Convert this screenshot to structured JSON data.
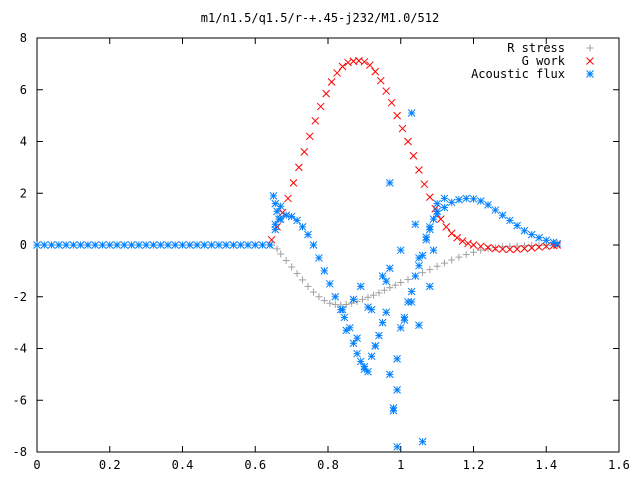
{
  "chart_data": {
    "type": "scatter",
    "title": "m1/n1.5/q1.5/r-+.45-j232/M1.0/512",
    "xlabel": "",
    "ylabel": "",
    "xlim": [
      0,
      1.6
    ],
    "ylim": [
      -8,
      8
    ],
    "xticks": [
      "0",
      "0.2",
      "0.4",
      "0.6",
      "0.8",
      "1",
      "1.2",
      "1.4",
      "1.6"
    ],
    "yticks": [
      "8",
      "6",
      "4",
      "2",
      "0",
      "-2",
      "-4",
      "-6",
      "-8"
    ],
    "grid": false,
    "legend_position": "top-right",
    "series": [
      {
        "name": "R stress",
        "marker": "plus",
        "color": "#a0a0a0",
        "x": [
          0.645,
          0.66,
          0.67,
          0.685,
          0.7,
          0.715,
          0.73,
          0.745,
          0.76,
          0.775,
          0.79,
          0.805,
          0.82,
          0.835,
          0.85,
          0.865,
          0.88,
          0.895,
          0.91,
          0.925,
          0.94,
          0.955,
          0.97,
          0.985,
          1.0,
          1.02,
          1.04,
          1.06,
          1.08,
          1.1,
          1.12,
          1.14,
          1.16,
          1.18,
          1.2,
          1.22,
          1.24,
          1.26,
          1.28,
          1.3,
          1.32,
          1.34,
          1.36,
          1.38,
          1.4,
          1.42,
          1.43
        ],
        "y": [
          0.0,
          -0.15,
          -0.35,
          -0.6,
          -0.85,
          -1.1,
          -1.35,
          -1.6,
          -1.82,
          -2.0,
          -2.15,
          -2.25,
          -2.3,
          -2.32,
          -2.3,
          -2.25,
          -2.18,
          -2.1,
          -2.02,
          -1.94,
          -1.85,
          -1.75,
          -1.65,
          -1.55,
          -1.45,
          -1.33,
          -1.2,
          -1.07,
          -0.95,
          -0.82,
          -0.7,
          -0.58,
          -0.47,
          -0.37,
          -0.28,
          -0.2,
          -0.14,
          -0.1,
          -0.07,
          -0.05,
          -0.04,
          -0.03,
          -0.02,
          -0.02,
          -0.01,
          -0.01,
          0.0
        ]
      },
      {
        "name": "G work",
        "marker": "cross",
        "color": "#ff0000",
        "x": [
          0.645,
          0.66,
          0.675,
          0.69,
          0.705,
          0.72,
          0.735,
          0.75,
          0.765,
          0.78,
          0.795,
          0.81,
          0.825,
          0.84,
          0.855,
          0.87,
          0.885,
          0.9,
          0.915,
          0.93,
          0.945,
          0.96,
          0.975,
          0.99,
          1.005,
          1.02,
          1.035,
          1.05,
          1.065,
          1.08,
          1.095,
          1.11,
          1.125,
          1.14,
          1.155,
          1.17,
          1.185,
          1.2,
          1.22,
          1.24,
          1.26,
          1.28,
          1.3,
          1.32,
          1.34,
          1.36,
          1.38,
          1.4,
          1.42,
          1.43
        ],
        "y": [
          0.2,
          0.7,
          1.25,
          1.8,
          2.4,
          3.0,
          3.6,
          4.2,
          4.8,
          5.35,
          5.85,
          6.3,
          6.65,
          6.9,
          7.05,
          7.1,
          7.12,
          7.08,
          6.95,
          6.7,
          6.35,
          5.95,
          5.5,
          5.0,
          4.5,
          4.0,
          3.45,
          2.9,
          2.35,
          1.85,
          1.4,
          1.0,
          0.7,
          0.45,
          0.28,
          0.15,
          0.06,
          0.0,
          -0.05,
          -0.1,
          -0.14,
          -0.16,
          -0.17,
          -0.16,
          -0.14,
          -0.11,
          -0.08,
          -0.05,
          -0.02,
          0.0
        ]
      },
      {
        "name": "Acoustic flux",
        "marker": "star",
        "color": "#0080ff",
        "x": [
          0.0,
          0.02,
          0.04,
          0.06,
          0.08,
          0.1,
          0.12,
          0.14,
          0.16,
          0.18,
          0.2,
          0.22,
          0.24,
          0.26,
          0.28,
          0.3,
          0.32,
          0.34,
          0.36,
          0.38,
          0.4,
          0.42,
          0.44,
          0.46,
          0.48,
          0.5,
          0.52,
          0.54,
          0.56,
          0.58,
          0.6,
          0.62,
          0.64,
          0.655,
          0.67,
          0.685,
          0.7,
          0.715,
          0.73,
          0.745,
          0.76,
          0.775,
          0.79,
          0.805,
          0.82,
          0.835,
          0.845,
          1.1,
          1.12,
          1.14,
          1.16,
          1.18,
          1.2,
          1.22,
          1.24,
          1.26,
          1.28,
          1.3,
          1.32,
          1.34,
          1.36,
          1.38,
          1.4,
          1.42,
          1.43,
          0.65,
          0.655,
          0.66,
          0.665,
          0.67,
          0.655,
          0.84,
          0.86,
          0.87,
          0.88,
          0.89,
          0.9,
          0.91,
          0.92,
          0.93,
          0.94,
          0.95,
          0.96,
          0.97,
          0.98,
          0.99,
          1.0,
          1.01,
          1.02,
          1.03,
          1.04,
          1.05,
          1.06,
          1.07,
          1.08,
          1.09,
          1.1,
          0.85,
          0.87,
          0.89,
          0.91,
          0.93,
          0.95,
          0.97,
          0.99,
          1.01,
          1.03,
          1.05,
          1.07,
          1.09,
          0.88,
          0.92,
          0.96,
          1.0,
          1.04,
          1.08,
          0.9,
          0.98,
          1.06,
          0.97,
          1.03,
          0.99,
          1.05,
          1.08,
          1.1,
          1.12
        ],
        "y": [
          0,
          0,
          0,
          0,
          0,
          0,
          0,
          0,
          0,
          0,
          0,
          0,
          0,
          0,
          0,
          0,
          0,
          0,
          0,
          0,
          0,
          0,
          0,
          0,
          0,
          0,
          0,
          0,
          0,
          0,
          0,
          0,
          0,
          0.6,
          1.0,
          1.15,
          1.1,
          0.95,
          0.7,
          0.4,
          0.0,
          -0.5,
          -1.0,
          -1.5,
          -2.0,
          -2.5,
          -2.8,
          1.2,
          1.45,
          1.65,
          1.75,
          1.8,
          1.78,
          1.7,
          1.55,
          1.35,
          1.15,
          0.95,
          0.75,
          0.55,
          0.4,
          0.28,
          0.18,
          0.1,
          0.05,
          1.9,
          1.6,
          1.3,
          1.0,
          1.5,
          0.8,
          -2.5,
          -3.2,
          -3.8,
          -4.2,
          -4.5,
          -4.8,
          -4.9,
          -4.3,
          -3.9,
          -3.5,
          -3.0,
          -2.6,
          -5.0,
          -6.4,
          -7.8,
          -3.2,
          -2.8,
          -2.2,
          -1.8,
          -1.2,
          -0.8,
          -0.4,
          0.2,
          0.6,
          1.0,
          1.6,
          -3.3,
          -2.1,
          -1.6,
          -2.4,
          -3.9,
          -1.2,
          -0.9,
          -4.4,
          -2.9,
          -2.2,
          -0.5,
          0.3,
          -0.2,
          -3.6,
          -2.5,
          -1.4,
          -0.2,
          0.8,
          -1.6,
          -4.7,
          -6.3,
          -7.6,
          2.4,
          5.1,
          -5.6,
          -3.1,
          0.7,
          1.3,
          1.8
        ]
      }
    ]
  }
}
